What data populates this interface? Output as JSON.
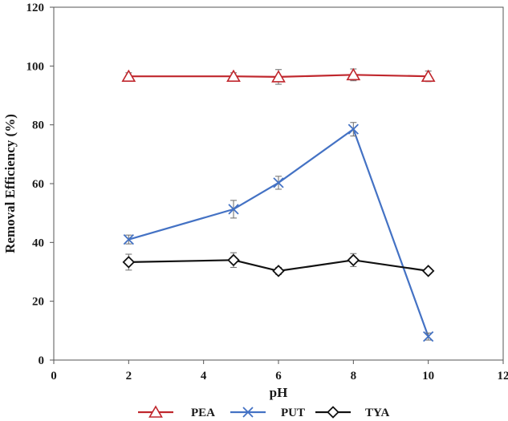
{
  "chart_data": {
    "type": "line",
    "xlabel": "pH",
    "ylabel": "Removal Efficiency (%)",
    "xlim": [
      0,
      12
    ],
    "ylim": [
      0,
      120
    ],
    "xticks": [
      "0",
      "2",
      "4",
      "6",
      "8",
      "10",
      "12"
    ],
    "yticks": [
      "0",
      "20",
      "40",
      "60",
      "80",
      "100",
      "120"
    ],
    "grid": false,
    "legend_position": "bottom",
    "series": [
      {
        "name": "PEA",
        "color": "#c0272d",
        "marker": "triangle",
        "x": [
          2,
          4.8,
          6,
          8,
          10
        ],
        "y": [
          96.5,
          96.5,
          96.3,
          97,
          96.5
        ],
        "err": [
          1.2,
          1.2,
          2.5,
          2.0,
          1.8
        ]
      },
      {
        "name": "PUT",
        "color": "#4472c4",
        "marker": "x",
        "x": [
          2,
          4.8,
          6,
          8,
          10
        ],
        "y": [
          41,
          51.3,
          60.3,
          78.5,
          8
        ],
        "err": [
          1.5,
          3.0,
          2.2,
          2.3,
          1.2
        ]
      },
      {
        "name": "TYA",
        "color": "#111111",
        "marker": "diamond",
        "x": [
          2,
          4.8,
          6,
          8,
          10
        ],
        "y": [
          33.3,
          34,
          30.3,
          34,
          30.3
        ],
        "err": [
          2.7,
          2.5,
          1.2,
          2.2,
          0.9
        ]
      }
    ]
  }
}
